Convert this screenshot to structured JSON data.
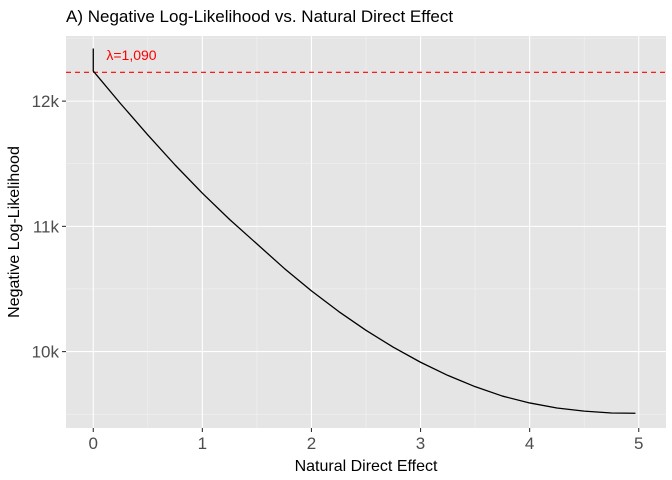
{
  "chart_data": {
    "type": "line",
    "title": "A) Negative Log-Likelihood vs. Natural Direct Effect",
    "xlabel": "Natural Direct Effect",
    "ylabel": "Negative Log-Likelihood",
    "xlim": [
      -0.25,
      5.25
    ],
    "ylim": [
      9390,
      12520
    ],
    "x_ticks": [
      0,
      1,
      2,
      3,
      4,
      5
    ],
    "x_tick_labels": [
      "0",
      "1",
      "2",
      "3",
      "4",
      "5"
    ],
    "y_ticks": [
      10000,
      11000,
      12000
    ],
    "y_tick_labels": [
      "10k",
      "11k",
      "12k"
    ],
    "grid": true,
    "background": "#e5e5e5",
    "series": [
      {
        "color": "#000000",
        "x": [
          0.0,
          0.0,
          0.25,
          0.5,
          0.75,
          1.0,
          1.25,
          1.5,
          1.75,
          2.0,
          2.25,
          2.5,
          2.75,
          3.0,
          3.25,
          3.5,
          3.75,
          4.0,
          4.25,
          4.5,
          4.75,
          4.97
        ],
        "y": [
          12420,
          12240,
          11980,
          11730,
          11490,
          11265,
          11055,
          10860,
          10665,
          10485,
          10320,
          10170,
          10035,
          9915,
          9810,
          9720,
          9645,
          9590,
          9550,
          9525,
          9510,
          9508
        ]
      }
    ],
    "hline": {
      "y": 12230,
      "color": "#ff0000",
      "style": "dashed"
    },
    "annotations": [
      {
        "text": "λ=1,090",
        "x": 0.12,
        "y": 12330,
        "color": "#ff0000"
      }
    ]
  }
}
